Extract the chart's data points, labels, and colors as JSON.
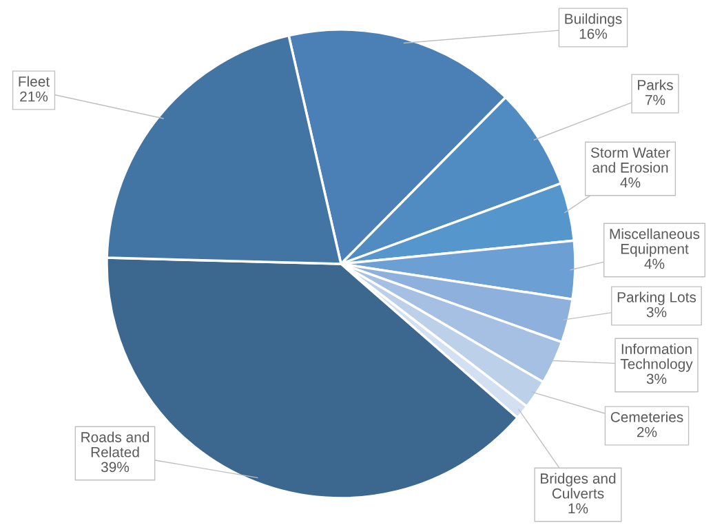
{
  "chart_data": {
    "type": "pie",
    "categories": [
      "Buildings",
      "Parks",
      "Storm Water\nand Erosion",
      "Miscellaneous\nEquipment",
      "Parking Lots",
      "Information\nTechnology",
      "Cemeteries",
      "Bridges and\nCulverts",
      "Roads and\nRelated",
      "Fleet"
    ],
    "values": [
      16,
      7,
      4,
      4,
      3,
      3,
      2,
      1,
      39,
      21
    ],
    "colors": [
      "#4a80b5",
      "#508bc2",
      "#5596cc",
      "#6c9fd4",
      "#8eb0dc",
      "#a5c0e2",
      "#bcd0ea",
      "#d2e0f1",
      "#3c6890",
      "#4375a4"
    ],
    "value_labels": [
      "16%",
      "7%",
      "4%",
      "4%",
      "3%",
      "3%",
      "2%",
      "1%",
      "39%",
      "21%"
    ]
  }
}
